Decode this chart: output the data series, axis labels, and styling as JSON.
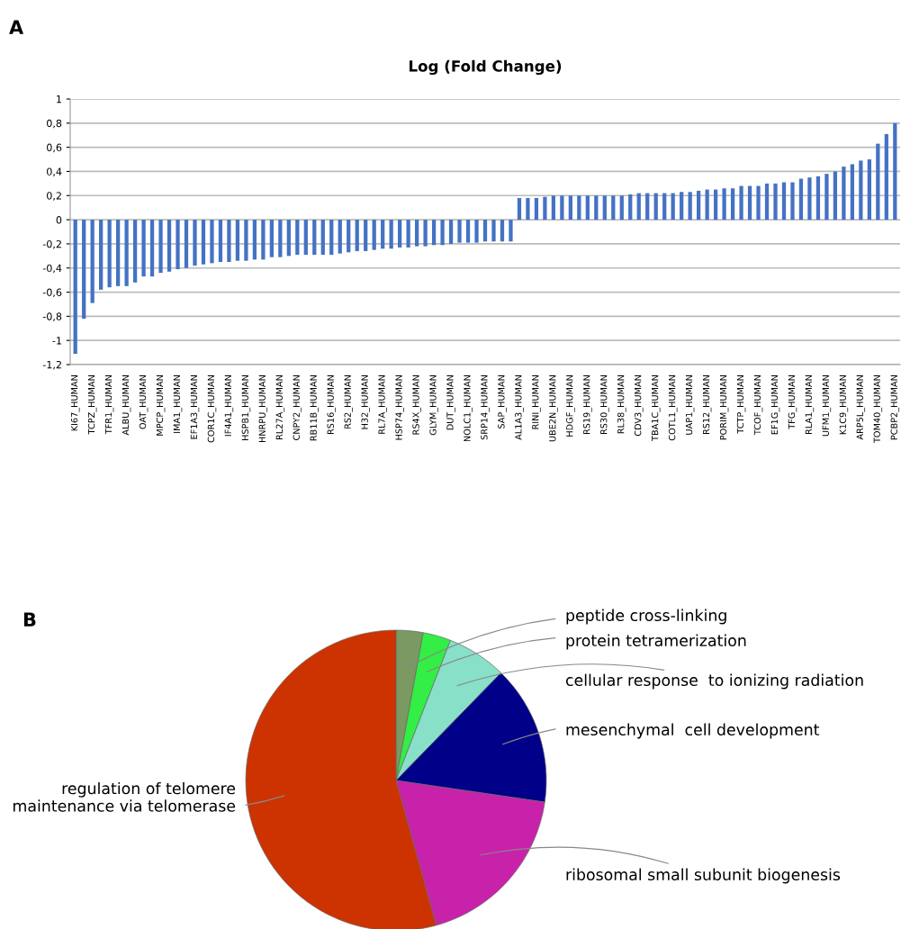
{
  "chart_data": [
    {
      "type": "bar",
      "title": "Log (Fold Change)",
      "annotations": [
        "A"
      ],
      "color": "#4472c4",
      "grid": "y",
      "categories": [
        "KI67_HUMAN",
        null,
        "TCPZ_HUMAN",
        null,
        "TFR1_HUMAN",
        null,
        "ALBU_HUMAN",
        null,
        "OAT_HUMAN",
        null,
        "MPCP_HUMAN",
        null,
        "IMA1_HUMAN",
        null,
        "EF1A3_HUMAN",
        null,
        "COR1C_HUMAN",
        null,
        "IF4A1_HUMAN",
        null,
        "HSPB1_HUMAN",
        null,
        "HNRPU_HUMAN",
        null,
        "RL27A_HUMAN",
        null,
        "CNPY2_HUMAN",
        null,
        "RB11B_HUMAN",
        null,
        "RS16_HUMAN",
        null,
        "RS2_HUMAN",
        null,
        "H32_HUMAN",
        null,
        "RL7A_HUMAN",
        null,
        "HSP74_HUMAN",
        null,
        "RS4X_HUMAN",
        null,
        "GLYM_HUMAN",
        null,
        "DUT_HUMAN",
        null,
        "NOLC1_HUMAN",
        null,
        "SRP14_HUMAN",
        null,
        "SAP_HUMAN",
        null,
        "AL1A3_HUMAN",
        null,
        "RINI_HUMAN",
        null,
        "UBE2N_HUMAN",
        null,
        "HDGF_HUMAN",
        null,
        "RS19_HUMAN",
        null,
        "RS30_HUMAN",
        null,
        "RL38_HUMAN",
        null,
        "CDV3_HUMAN",
        null,
        "TBA1C_HUMAN",
        null,
        "COTL1_HUMAN",
        null,
        "UAP1_HUMAN",
        null,
        "RS12_HUMAN",
        null,
        "PORIM_HUMAN",
        null,
        "TCTP_HUMAN",
        null,
        "TCOF_HUMAN",
        null,
        "EF1G_HUMAN",
        null,
        "TFG_HUMAN",
        null,
        "RLA1_HUMAN",
        null,
        "UFM1_HUMAN",
        null,
        "K1C9_HUMAN",
        null,
        "ARP5L_HUMAN",
        null,
        "TOM40_HUMAN",
        null,
        "PCBP2_HUMAN"
      ],
      "values": [
        -1.11,
        -0.82,
        -0.69,
        -0.58,
        -0.56,
        -0.55,
        -0.55,
        -0.52,
        -0.47,
        -0.47,
        -0.44,
        -0.43,
        -0.41,
        -0.4,
        -0.38,
        -0.37,
        -0.36,
        -0.35,
        -0.35,
        -0.34,
        -0.34,
        -0.33,
        -0.33,
        -0.31,
        -0.31,
        -0.3,
        -0.29,
        -0.29,
        -0.29,
        -0.29,
        -0.29,
        -0.28,
        -0.27,
        -0.26,
        -0.26,
        -0.25,
        -0.24,
        -0.24,
        -0.23,
        -0.23,
        -0.22,
        -0.22,
        -0.21,
        -0.21,
        -0.2,
        -0.19,
        -0.19,
        -0.19,
        -0.18,
        -0.18,
        -0.18,
        -0.18,
        0.18,
        0.18,
        0.18,
        0.19,
        0.2,
        0.2,
        0.2,
        0.2,
        0.2,
        0.2,
        0.2,
        0.2,
        0.2,
        0.21,
        0.22,
        0.22,
        0.22,
        0.22,
        0.22,
        0.23,
        0.23,
        0.24,
        0.25,
        0.25,
        0.26,
        0.26,
        0.28,
        0.28,
        0.28,
        0.3,
        0.3,
        0.31,
        0.31,
        0.34,
        0.35,
        0.36,
        0.38,
        0.4,
        0.44,
        0.46,
        0.49,
        0.5,
        0.63,
        0.71,
        0.8
      ],
      "ylim": [
        -1.2,
        1
      ],
      "yticks": [
        {
          "value": -1.2,
          "label": "-1,2"
        },
        {
          "value": -1,
          "label": "-1"
        },
        {
          "value": -0.8,
          "label": "-0,8"
        },
        {
          "value": -0.6,
          "label": "-0,6"
        },
        {
          "value": -0.4,
          "label": "-0,4"
        },
        {
          "value": -0.2,
          "label": "-0,2"
        },
        0,
        {
          "value": 0.2,
          "label": "0,2"
        },
        {
          "value": 0.4,
          "label": "0,4"
        },
        {
          "value": 0.6,
          "label": "0,6"
        },
        {
          "value": 0.8,
          "label": "0,8"
        },
        1
      ]
    },
    {
      "type": "pie",
      "annotations": [
        "B"
      ],
      "categories": [
        "peptide cross-linking",
        "protein tetramerization",
        "cellular response  to ionizing radiation",
        "mesenchymal  cell development",
        "ribosomal small subunit biogenesis",
        "regulation of telomere\nmaintenance via telomerase"
      ],
      "values": [
        2.9,
        3.0,
        6.4,
        15.0,
        18.4,
        54.3
      ],
      "colors": [
        "#7a9a62",
        "#33ee44",
        "#88e0c8",
        "#000088",
        "#c822aa",
        "#cc3300"
      ]
    }
  ]
}
